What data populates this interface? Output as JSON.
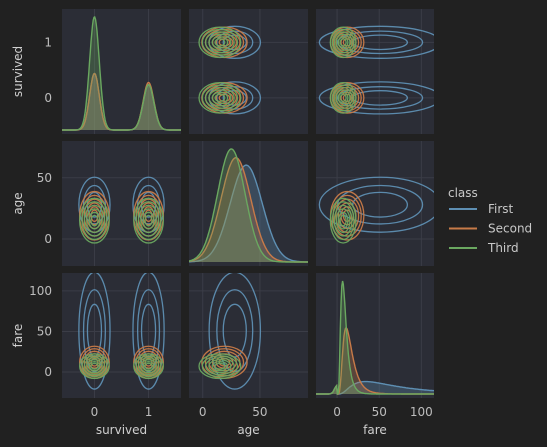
{
  "chart_data": {
    "type": "pairplot-kde",
    "variables": [
      "survived",
      "age",
      "fare"
    ],
    "axis_labels": {
      "survived": "survived",
      "age": "age",
      "fare": "fare"
    },
    "xlim": {
      "survived": [
        -0.6,
        1.6
      ],
      "age": [
        -12,
        92
      ],
      "fare": [
        -25,
        115
      ]
    },
    "ylim": {
      "survived": [
        -0.65,
        1.6
      ],
      "age": [
        -22,
        80
      ],
      "fare": [
        -32,
        122
      ]
    },
    "ticks": {
      "survived": {
        "values": [
          0,
          1
        ],
        "labels": [
          "0",
          "1"
        ]
      },
      "age": {
        "values": [
          0,
          50
        ],
        "labels": [
          "0",
          "50"
        ]
      },
      "fare": {
        "values": [
          0,
          50,
          100
        ],
        "labels": [
          "0",
          "50",
          "100"
        ]
      }
    },
    "x_ticks_shown": {
      "survived": {
        "values": [
          0,
          1
        ],
        "labels": [
          "0",
          "1"
        ]
      },
      "age": {
        "values": [
          0,
          50
        ],
        "labels": [
          "0",
          "50"
        ]
      },
      "fare": {
        "values": [
          0,
          50,
          100
        ],
        "labels": [
          "0",
          "50",
          "100"
        ]
      }
    },
    "y_ticks_shown": {
      "survived": {
        "values": [
          0,
          1
        ],
        "labels": [
          "0",
          "1"
        ]
      },
      "age": {
        "values": [
          0,
          50
        ],
        "labels": [
          "0",
          "50"
        ]
      },
      "fare": {
        "values": [
          0,
          50,
          100
        ],
        "labels": [
          "0",
          "50",
          "100"
        ]
      }
    },
    "grid": true,
    "legend": {
      "title": "class",
      "position": "right"
    },
    "series": [
      {
        "name": "First",
        "color": "#5e8fb3",
        "survived_peaks": [
          0.5,
          0.4
        ],
        "age": {
          "mean": 38,
          "sd": 14
        },
        "fare": {
          "mean": 85,
          "sd": 60
        }
      },
      {
        "name": "Second",
        "color": "#c87a48",
        "survived_peaks": [
          0.5,
          0.42
        ],
        "age": {
          "mean": 29,
          "sd": 13
        },
        "fare": {
          "mean": 20,
          "sd": 13
        }
      },
      {
        "name": "Third",
        "color": "#6aa860",
        "survived_peaks": [
          1.0,
          0.4
        ],
        "age": {
          "mean": 25,
          "sd": 12
        },
        "fare": {
          "mean": 12,
          "sd": 10
        }
      }
    ]
  }
}
